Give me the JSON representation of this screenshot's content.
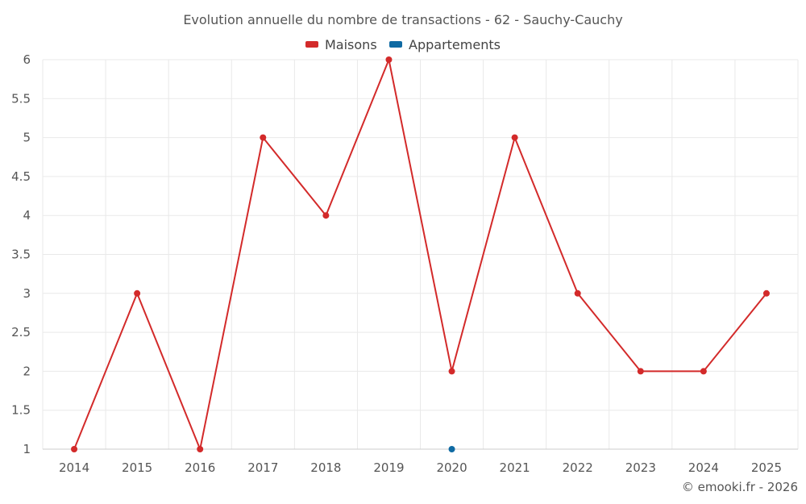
{
  "chart_data": {
    "type": "line",
    "title": "Evolution annuelle du nombre de transactions - 62 - Sauchy-Cauchy",
    "categories": [
      "2014",
      "2015",
      "2016",
      "2017",
      "2018",
      "2019",
      "2020",
      "2021",
      "2022",
      "2023",
      "2024",
      "2025"
    ],
    "series": [
      {
        "name": "Maisons",
        "color": "#d32a2a",
        "values": [
          1,
          3,
          1,
          5,
          4,
          6,
          2,
          5,
          3,
          2,
          2,
          3
        ]
      },
      {
        "name": "Appartements",
        "color": "#0f6aa3",
        "values": [
          null,
          null,
          null,
          null,
          null,
          null,
          1,
          null,
          null,
          null,
          null,
          null
        ]
      }
    ],
    "ylim": [
      1,
      6
    ],
    "yticks": [
      "1",
      "1.5",
      "2",
      "2.5",
      "3",
      "3.5",
      "4",
      "4.5",
      "5",
      "5.5",
      "6"
    ],
    "grid": true,
    "legend": "top-center",
    "xlabel": "",
    "ylabel": ""
  },
  "credit": "© emooki.fr - 2026"
}
